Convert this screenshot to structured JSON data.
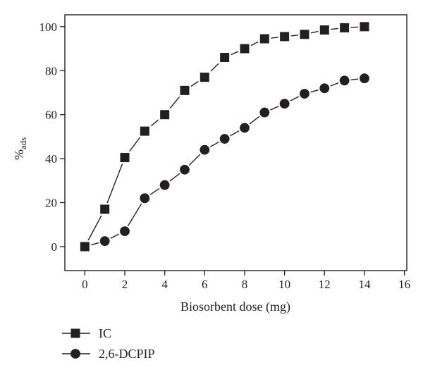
{
  "figure": {
    "background": "#ffffff",
    "ink_color": "#231f20"
  },
  "chart_data": {
    "type": "line",
    "title": "",
    "xlabel": "Biosorbent dose (mg)",
    "ylabel": "% ads",
    "ylabel_main": "%",
    "ylabel_sub": "ads",
    "xlim": [
      -1,
      16.12
    ],
    "ylim": [
      -10.9,
      105.4
    ],
    "x_ticks": [
      0,
      2,
      4,
      6,
      8,
      10,
      12,
      14,
      16
    ],
    "y_ticks": [
      0,
      20,
      40,
      60,
      80,
      100
    ],
    "grid": false,
    "legend_position": "below-left",
    "x": [
      0,
      1,
      2,
      3,
      4,
      5,
      6,
      7,
      8,
      9,
      10,
      11,
      12,
      13,
      14
    ],
    "series": [
      {
        "name": "2,6-DCPIP",
        "marker": "circle",
        "color": "#231f20",
        "values": [
          0,
          2.5,
          7,
          22,
          28,
          35,
          44,
          49,
          54,
          61,
          65,
          69.5,
          72,
          75.5,
          76.5
        ]
      },
      {
        "name": "IC",
        "marker": "square",
        "color": "#231f20",
        "values": [
          0,
          17,
          40.5,
          52.5,
          60,
          71,
          77,
          86,
          90,
          94.5,
          95.5,
          96.5,
          98.5,
          99.5,
          100
        ]
      }
    ],
    "legend_order": [
      "IC",
      "2,6-DCPIP"
    ]
  }
}
